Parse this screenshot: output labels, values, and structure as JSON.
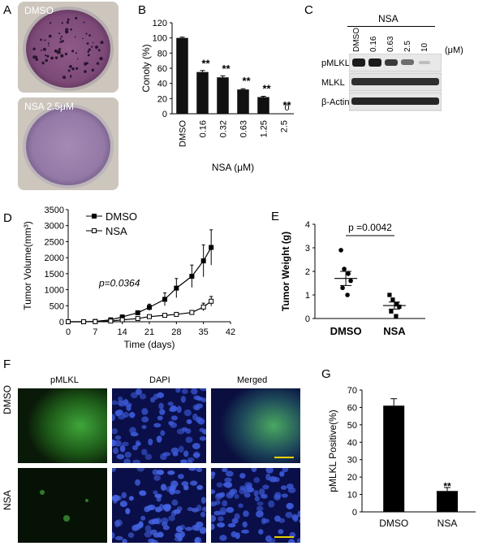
{
  "panels": {
    "A": {
      "label": "A",
      "top_label": "DMSO",
      "bottom_label": "NSA 2.5μM"
    },
    "B": {
      "label": "B"
    },
    "C": {
      "label": "C",
      "group": "NSA",
      "lanes": [
        "DMSO",
        "0.16",
        "0.63",
        "2.5",
        "10"
      ],
      "unit": "(μM)",
      "rows": [
        "pMLKL",
        "MLKL",
        "β-Actin"
      ]
    },
    "D": {
      "label": "D"
    },
    "E": {
      "label": "E"
    },
    "F": {
      "label": "F",
      "columns": [
        "pMLKL",
        "DAPI",
        "Merged"
      ],
      "rows": [
        "DMSO",
        "NSA"
      ]
    },
    "G": {
      "label": "G"
    }
  },
  "chart_data": [
    {
      "id": "B",
      "type": "bar",
      "categories": [
        "DMSO",
        "0.16",
        "0.32",
        "0.63",
        "1.25",
        "2.5"
      ],
      "values": [
        100,
        55,
        48,
        32,
        22,
        0
      ],
      "errors": [
        1,
        2,
        2,
        1,
        1,
        0
      ],
      "annotations": [
        "",
        "**",
        "**",
        "**",
        "**",
        "**"
      ],
      "zero_label": "0",
      "ylabel": "Conoly (%)",
      "xlabel": "NSA (μM)",
      "ylim": [
        0,
        120
      ],
      "yticks": [
        0,
        20,
        40,
        60,
        80,
        100,
        120
      ]
    },
    {
      "id": "D",
      "type": "line",
      "x": [
        0,
        4,
        7,
        11,
        14,
        18,
        21,
        25,
        28,
        32,
        35,
        37
      ],
      "series": [
        {
          "name": "DMSO",
          "values": [
            0,
            0,
            10,
            60,
            150,
            280,
            450,
            700,
            1050,
            1420,
            1900,
            2320
          ],
          "errors": [
            0,
            0,
            10,
            20,
            40,
            60,
            100,
            200,
            300,
            350,
            500,
            550
          ]
        },
        {
          "name": "NSA",
          "values": [
            0,
            0,
            5,
            20,
            60,
            100,
            160,
            200,
            230,
            290,
            460,
            640
          ],
          "errors": [
            0,
            0,
            5,
            10,
            20,
            25,
            30,
            40,
            50,
            60,
            120,
            150
          ]
        }
      ],
      "annotation": "p=0.0364",
      "xlabel": "Time (days)",
      "ylabel": "Tumor Volume(mm³)",
      "xlim": [
        0,
        42
      ],
      "ylim": [
        0,
        3500
      ],
      "xticks": [
        0,
        7,
        14,
        21,
        28,
        35,
        42
      ],
      "yticks": [
        0,
        500,
        1000,
        1500,
        2000,
        2500,
        3000,
        3500
      ]
    },
    {
      "id": "E",
      "type": "scatter",
      "categories": [
        "DMSO",
        "NSA"
      ],
      "points": [
        [
          2.9,
          2.1,
          1.9,
          1.6,
          1.3,
          1.0
        ],
        [
          1.0,
          0.8,
          0.6,
          0.5,
          0.3,
          0.1
        ]
      ],
      "means": [
        1.7,
        0.55
      ],
      "sem": [
        0.3,
        0.15
      ],
      "annotation": "p =0.0042",
      "ylabel": "Tumor Weight (g)",
      "ylim": [
        0,
        4
      ],
      "yticks": [
        0,
        1,
        2,
        3,
        4
      ]
    },
    {
      "id": "G",
      "type": "bar",
      "categories": [
        "DMSO",
        "NSA"
      ],
      "values": [
        61,
        12
      ],
      "errors": [
        4,
        2
      ],
      "annotations": [
        "",
        "**"
      ],
      "ylabel": "pMLKL Positive(%)",
      "ylim": [
        0,
        70
      ],
      "yticks": [
        0,
        10,
        20,
        30,
        40,
        50,
        60,
        70
      ]
    }
  ]
}
